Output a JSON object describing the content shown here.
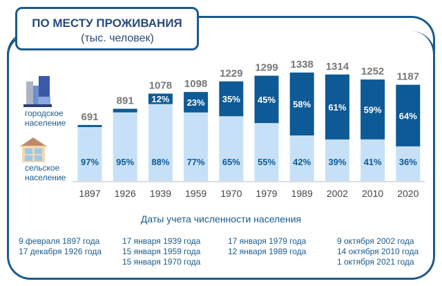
{
  "title": "ПО МЕСТУ ПРОЖИВАНИЯ",
  "subtitle": "(тыс. человек)",
  "legend": {
    "urban": "городское население",
    "rural": "сельское население",
    "urban_icon": "city-buildings-icon",
    "rural_icon": "house-icon"
  },
  "colors": {
    "urban": "#0d5a96",
    "rural": "#c6e1f7",
    "total_label": "#777777",
    "frame": "#1b5a8c"
  },
  "chart_data": {
    "type": "bar",
    "stacked": true,
    "xlabel": "Даты учета численности населения",
    "categories": [
      "1897",
      "1926",
      "1939",
      "1959",
      "1970",
      "1979",
      "1989",
      "2002",
      "2010",
      "2020"
    ],
    "totals": [
      691,
      891,
      1078,
      1098,
      1229,
      1299,
      1338,
      1314,
      1252,
      1187
    ],
    "series": [
      {
        "name": "сельское население",
        "values_pct": [
          97,
          95,
          88,
          77,
          65,
          55,
          42,
          39,
          41,
          36
        ]
      },
      {
        "name": "городское население",
        "values_pct": [
          3,
          5,
          12,
          23,
          35,
          45,
          58,
          61,
          59,
          64
        ]
      }
    ],
    "urban_labels": [
      "",
      "",
      "12%",
      "23%",
      "35%",
      "45%",
      "58%",
      "61%",
      "59%",
      "64%"
    ],
    "rural_labels": [
      "97%",
      "95%",
      "88%",
      "77%",
      "65%",
      "55%",
      "42%",
      "39%",
      "41%",
      "36%"
    ]
  },
  "dates": [
    [
      "9 февраля 1897 года",
      "17 декабря 1926 года"
    ],
    [
      "17 января 1939 года",
      "15 января 1959 года",
      "15 января 1970 года"
    ],
    [
      "17 января 1979 года",
      "12 января 1989 года"
    ],
    [
      "9 октября 2002 года",
      "14 октября 2010 года",
      "1 октября 2021 года"
    ]
  ]
}
